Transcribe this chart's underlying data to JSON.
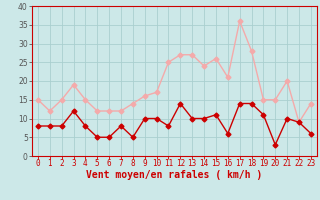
{
  "hours": [
    0,
    1,
    2,
    3,
    4,
    5,
    6,
    7,
    8,
    9,
    10,
    11,
    12,
    13,
    14,
    15,
    16,
    17,
    18,
    19,
    20,
    21,
    22,
    23
  ],
  "wind_avg": [
    8,
    8,
    8,
    12,
    8,
    5,
    5,
    8,
    5,
    10,
    10,
    8,
    14,
    10,
    10,
    11,
    6,
    14,
    14,
    11,
    3,
    10,
    9,
    6
  ],
  "wind_gust": [
    15,
    12,
    15,
    19,
    15,
    12,
    12,
    12,
    14,
    16,
    17,
    25,
    27,
    27,
    24,
    26,
    21,
    36,
    28,
    15,
    15,
    20,
    9,
    14
  ],
  "xlabel": "Vent moyen/en rafales ( km/h )",
  "ylim": [
    0,
    40
  ],
  "yticks": [
    0,
    5,
    10,
    15,
    20,
    25,
    30,
    35,
    40
  ],
  "ytick_labels": [
    "0",
    "5",
    "10",
    "15",
    "20",
    "25",
    "30",
    "35",
    "40"
  ],
  "bg_color": "#cce8e8",
  "grid_color": "#aacfcf",
  "avg_color": "#cc0000",
  "gust_color": "#f4aaaa",
  "marker_size": 2.5,
  "line_width": 1.0,
  "tick_fontsize": 5.5,
  "xlabel_fontsize": 7.0
}
